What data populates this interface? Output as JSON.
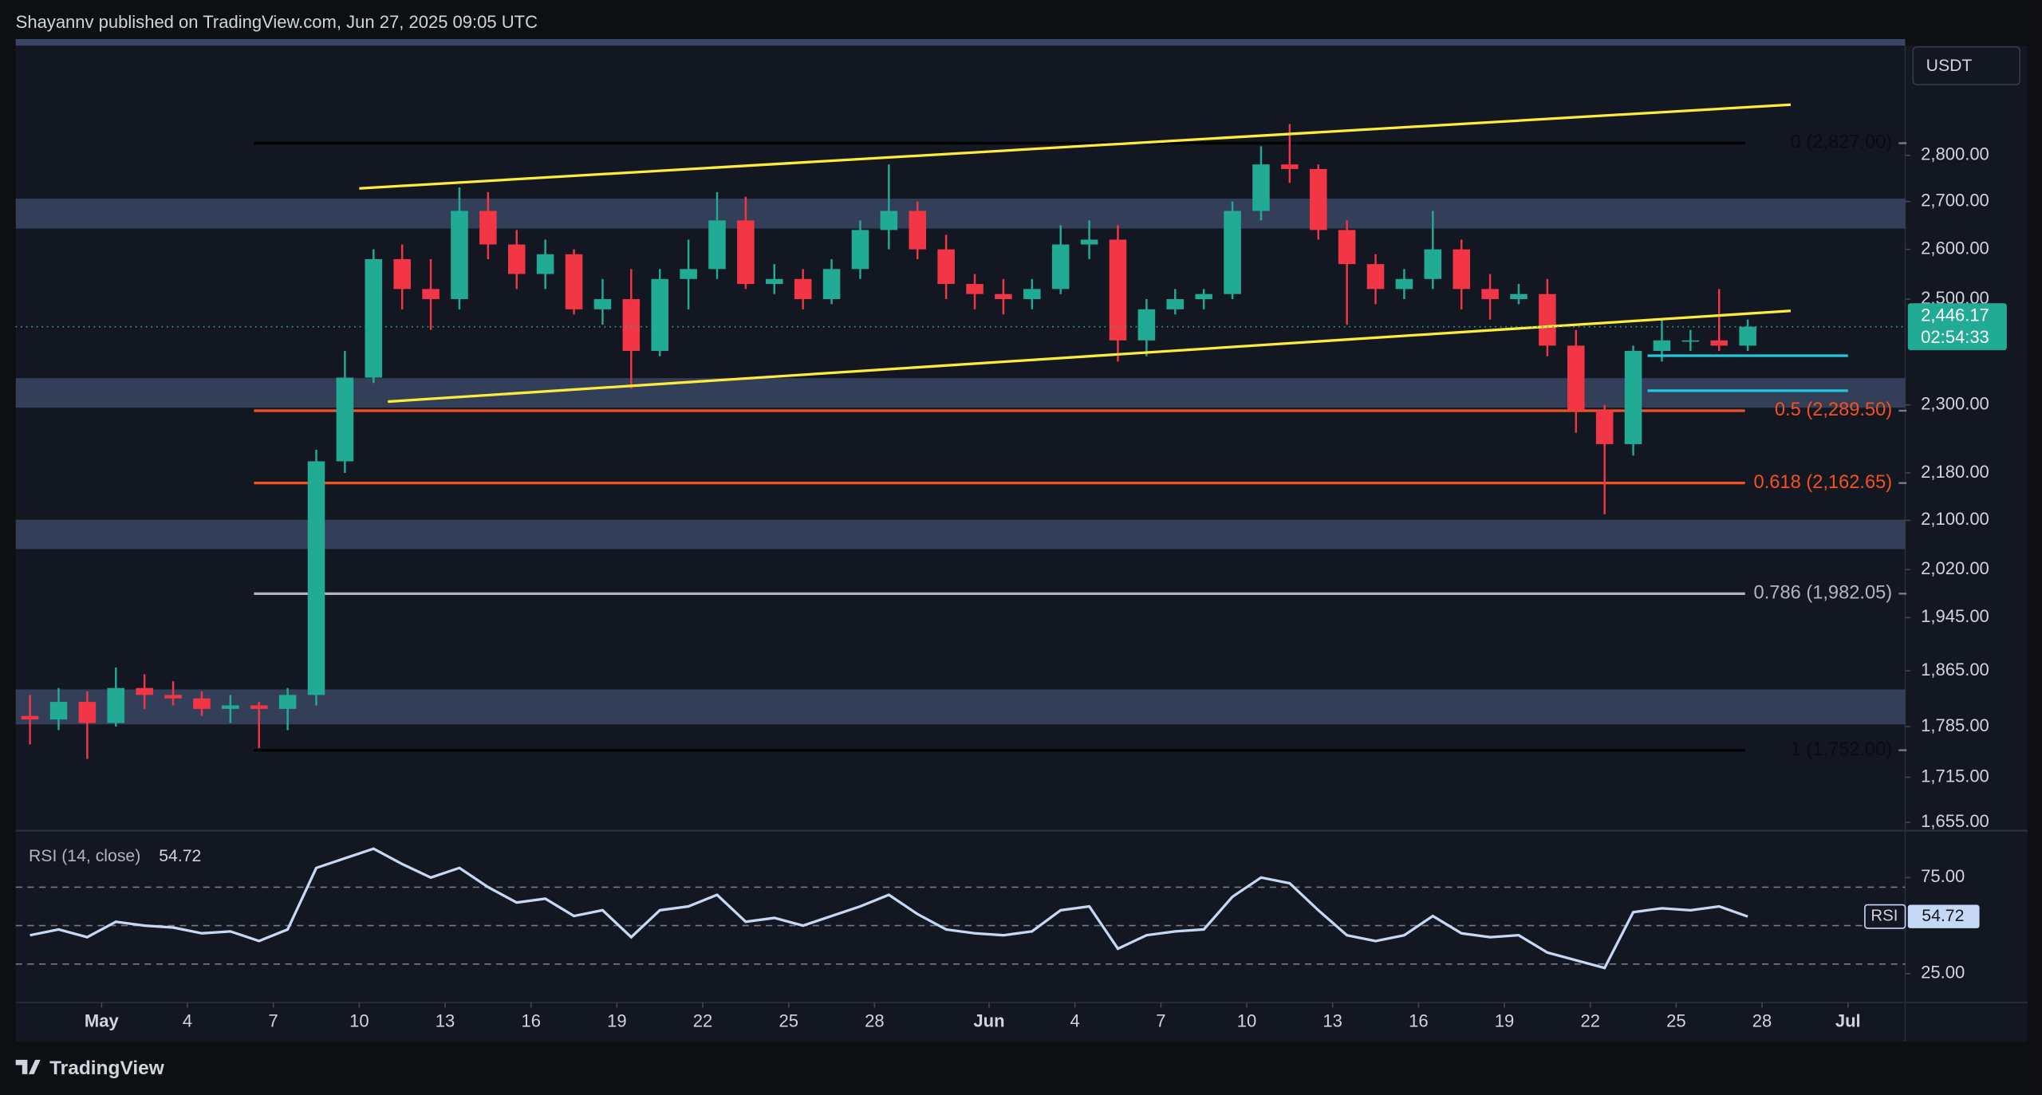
{
  "header": "Shayannv published on TradingView.com, Jun 27, 2025 09:05 UTC",
  "brand": "TradingView",
  "chart_data": [
    {
      "type": "candlestick",
      "currency": "USDT",
      "log_scale": true,
      "grid": false,
      "up_color": "#22ab94",
      "down_color": "#f23645",
      "x": [
        "Apr 28",
        "Apr 29",
        "Apr 30",
        "May 1",
        "May 2",
        "May 3",
        "May 4",
        "May 5",
        "May 6",
        "May 7",
        "May 8",
        "May 9",
        "May 10",
        "May 11",
        "May 12",
        "May 13",
        "May 14",
        "May 15",
        "May 16",
        "May 17",
        "May 18",
        "May 19",
        "May 20",
        "May 21",
        "May 22",
        "May 23",
        "May 24",
        "May 25",
        "May 26",
        "May 27",
        "May 28",
        "May 29",
        "May 30",
        "May 31",
        "Jun 1",
        "Jun 2",
        "Jun 3",
        "Jun 4",
        "Jun 5",
        "Jun 6",
        "Jun 7",
        "Jun 8",
        "Jun 9",
        "Jun 10",
        "Jun 11",
        "Jun 12",
        "Jun 13",
        "Jun 14",
        "Jun 15",
        "Jun 16",
        "Jun 17",
        "Jun 18",
        "Jun 19",
        "Jun 20",
        "Jun 21",
        "Jun 22",
        "Jun 23",
        "Jun 24",
        "Jun 25",
        "Jun 26",
        "Jun 27",
        "Jun 28",
        "Jun 29",
        "Jun 30",
        "Jul 1",
        "Jul 2"
      ],
      "open": [
        1800,
        1795,
        1820,
        1790,
        1840,
        1830,
        1825,
        1810,
        1815,
        1810,
        1830,
        2200,
        2350,
        2580,
        2520,
        2500,
        2680,
        2610,
        2550,
        2590,
        2480,
        2500,
        2400,
        2540,
        2560,
        2660,
        2530,
        2540,
        2500,
        2560,
        2640,
        2680,
        2600,
        2530,
        2510,
        2500,
        2520,
        2610,
        2620,
        2420,
        2480,
        2500,
        2510,
        2680,
        2780,
        2770,
        2640,
        2570,
        2520,
        2540,
        2600,
        2520,
        2500,
        2510,
        2410,
        2290,
        2230,
        2400,
        2420,
        2420,
        2410,
        null,
        null,
        null,
        null,
        null
      ],
      "high": [
        1830,
        1840,
        1835,
        1870,
        1860,
        1850,
        1835,
        1830,
        1820,
        1840,
        2220,
        2400,
        2600,
        2610,
        2580,
        2730,
        2720,
        2640,
        2620,
        2600,
        2540,
        2560,
        2560,
        2620,
        2720,
        2710,
        2570,
        2560,
        2580,
        2660,
        2780,
        2700,
        2630,
        2550,
        2540,
        2540,
        2650,
        2660,
        2650,
        2500,
        2520,
        2520,
        2700,
        2820,
        2870,
        2780,
        2660,
        2590,
        2560,
        2680,
        2620,
        2550,
        2530,
        2540,
        2440,
        2300,
        2410,
        2460,
        2440,
        2520,
        2460,
        null,
        null,
        null,
        null,
        null
      ],
      "low": [
        1760,
        1780,
        1740,
        1785,
        1810,
        1815,
        1800,
        1790,
        1755,
        1780,
        1815,
        2180,
        2340,
        2480,
        2440,
        2480,
        2580,
        2520,
        2520,
        2470,
        2450,
        2330,
        2390,
        2480,
        2540,
        2520,
        2510,
        2480,
        2490,
        2540,
        2600,
        2580,
        2500,
        2480,
        2470,
        2480,
        2510,
        2580,
        2380,
        2390,
        2470,
        2480,
        2500,
        2660,
        2740,
        2620,
        2450,
        2490,
        2500,
        2520,
        2480,
        2460,
        2490,
        2390,
        2250,
        2110,
        2210,
        2380,
        2400,
        2400,
        2400,
        null,
        null,
        null,
        null,
        null
      ],
      "close": [
        1795,
        1820,
        1790,
        1840,
        1830,
        1825,
        1810,
        1815,
        1810,
        1830,
        2200,
        2350,
        2580,
        2520,
        2500,
        2680,
        2610,
        2550,
        2590,
        2480,
        2500,
        2400,
        2540,
        2560,
        2660,
        2530,
        2540,
        2500,
        2560,
        2640,
        2680,
        2600,
        2530,
        2510,
        2500,
        2520,
        2610,
        2620,
        2420,
        2480,
        2500,
        2510,
        2680,
        2780,
        2770,
        2640,
        2570,
        2520,
        2540,
        2600,
        2520,
        2500,
        2510,
        2410,
        2290,
        2230,
        2400,
        2420,
        2420,
        2410,
        2446.17,
        null,
        null,
        null,
        null,
        null
      ],
      "ylim": [
        1646,
        3053
      ],
      "yticks": [
        {
          "value": 1655,
          "label": "1,655.00"
        },
        {
          "value": 1715,
          "label": "1,715.00"
        },
        {
          "value": 1785,
          "label": "1,785.00"
        },
        {
          "value": 1865,
          "label": "1,865.00"
        },
        {
          "value": 1945,
          "label": "1,945.00"
        },
        {
          "value": 2020,
          "label": "2,020.00"
        },
        {
          "value": 2100,
          "label": "2,100.00"
        },
        {
          "value": 2180,
          "label": "2,180.00"
        },
        {
          "value": 2300,
          "label": "2,300.00"
        },
        {
          "value": 2500,
          "label": "2,500.00"
        },
        {
          "value": 2600,
          "label": "2,600.00"
        },
        {
          "value": 2700,
          "label": "2,700.00"
        },
        {
          "value": 2800,
          "label": "2,800.00"
        }
      ],
      "xticks": [
        {
          "value": "May 1",
          "label": "May"
        },
        {
          "value": "May 4",
          "label": "4"
        },
        {
          "value": "May 7",
          "label": "7"
        },
        {
          "value": "May 10",
          "label": "10"
        },
        {
          "value": "May 13",
          "label": "13"
        },
        {
          "value": "May 16",
          "label": "16"
        },
        {
          "value": "May 19",
          "label": "19"
        },
        {
          "value": "May 22",
          "label": "22"
        },
        {
          "value": "May 25",
          "label": "25"
        },
        {
          "value": "May 28",
          "label": "28"
        },
        {
          "value": "Jun 1",
          "label": "Jun"
        },
        {
          "value": "Jun 4",
          "label": "4"
        },
        {
          "value": "Jun 7",
          "label": "7"
        },
        {
          "value": "Jun 10",
          "label": "10"
        },
        {
          "value": "Jun 13",
          "label": "13"
        },
        {
          "value": "Jun 16",
          "label": "16"
        },
        {
          "value": "Jun 19",
          "label": "19"
        },
        {
          "value": "Jun 22",
          "label": "22"
        },
        {
          "value": "Jun 25",
          "label": "25"
        },
        {
          "value": "Jun 28",
          "label": "28"
        },
        {
          "value": "Jul 1",
          "label": "Jul"
        }
      ],
      "last_price": {
        "value": 2446.17,
        "label": "2,446.17"
      },
      "countdown": "02:54:33",
      "zone_color": "#3a4663",
      "zones": [
        {
          "low": 2643,
          "high": 2706
        },
        {
          "low": 2295,
          "high": 2349
        },
        {
          "low": 2053,
          "high": 2101
        },
        {
          "low": 1788,
          "high": 1838
        }
      ],
      "fib_levels": [
        {
          "value": 2827,
          "label": "0 (2,827.00)",
          "color": "#000000"
        },
        {
          "value": 2289.5,
          "label": "0.5 (2,289.50)",
          "color": "#f4511e"
        },
        {
          "value": 2162.65,
          "label": "0.618 (2,162.65)",
          "color": "#f4511e"
        },
        {
          "value": 1982.05,
          "label": "0.786 (1,982.05)",
          "color": "#b2b5be"
        },
        {
          "value": 1752,
          "label": "1 (1,752.00)",
          "color": "#000000"
        }
      ],
      "trendlines": [
        {
          "x": [
            "May 10",
            "Jun 29"
          ],
          "y": [
            2728,
            2914
          ],
          "color": "#ffeb3b"
        },
        {
          "x": [
            "May 11",
            "Jun 29"
          ],
          "y": [
            2306,
            2477
          ],
          "color": "#ffeb3b"
        },
        {
          "x": [
            "Jun 24",
            "Jul 1"
          ],
          "y": [
            2391,
            2391
          ],
          "color": "#26c6da"
        },
        {
          "x": [
            "Jun 24",
            "Jul 1"
          ],
          "y": [
            2326,
            2326
          ],
          "color": "#26c6da"
        }
      ]
    },
    {
      "type": "line",
      "title": "RSI (14, close)",
      "series": [
        {
          "name": "RSI",
          "color": "#c5d8f5",
          "values": [
            45,
            48,
            44,
            52,
            50,
            49,
            46,
            47,
            42,
            48,
            80,
            85,
            90,
            82,
            75,
            80,
            70,
            62,
            64,
            55,
            58,
            44,
            58,
            60,
            66,
            52,
            54,
            50,
            55,
            60,
            66,
            56,
            48,
            46,
            45,
            47,
            58,
            60,
            38,
            45,
            47,
            48,
            65,
            75,
            72,
            58,
            45,
            42,
            45,
            55,
            46,
            44,
            45,
            36,
            32,
            28,
            57,
            59,
            58,
            60,
            54.72,
            null,
            null,
            null,
            null,
            null
          ]
        }
      ],
      "ylim": [
        10,
        98
      ],
      "yticks": [
        {
          "value": 25,
          "label": "25.00"
        },
        {
          "value": 75,
          "label": "75.00"
        }
      ],
      "bands": [
        70,
        50,
        30
      ]
    }
  ]
}
